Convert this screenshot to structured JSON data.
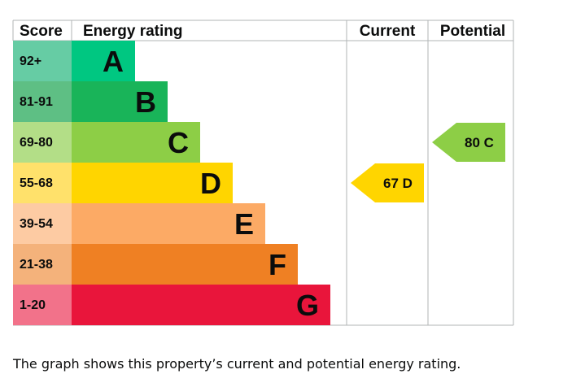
{
  "headers": {
    "score": "Score",
    "energy_rating": "Energy rating",
    "current": "Current",
    "potential": "Potential"
  },
  "chart_data": {
    "type": "bar",
    "categories": [
      "A",
      "B",
      "C",
      "D",
      "E",
      "F",
      "G"
    ],
    "score_ranges": [
      "92+",
      "81-91",
      "69-80",
      "55-68",
      "39-54",
      "21-38",
      "1-20"
    ],
    "bar_colors": [
      "#00c781",
      "#19b459",
      "#8dce46",
      "#ffd500",
      "#fcaa65",
      "#ef8023",
      "#e9153b"
    ],
    "band_colors": [
      "#66cca4",
      "#5ebf84",
      "#b3de87",
      "#ffe16b",
      "#fdcba3",
      "#f4b27b",
      "#f2728a"
    ],
    "current": {
      "value": 67,
      "rating": "D",
      "label": "67 D"
    },
    "potential": {
      "value": 80,
      "rating": "C",
      "label": "80 C"
    }
  },
  "caption": "The graph shows this property’s current and potential energy rating."
}
